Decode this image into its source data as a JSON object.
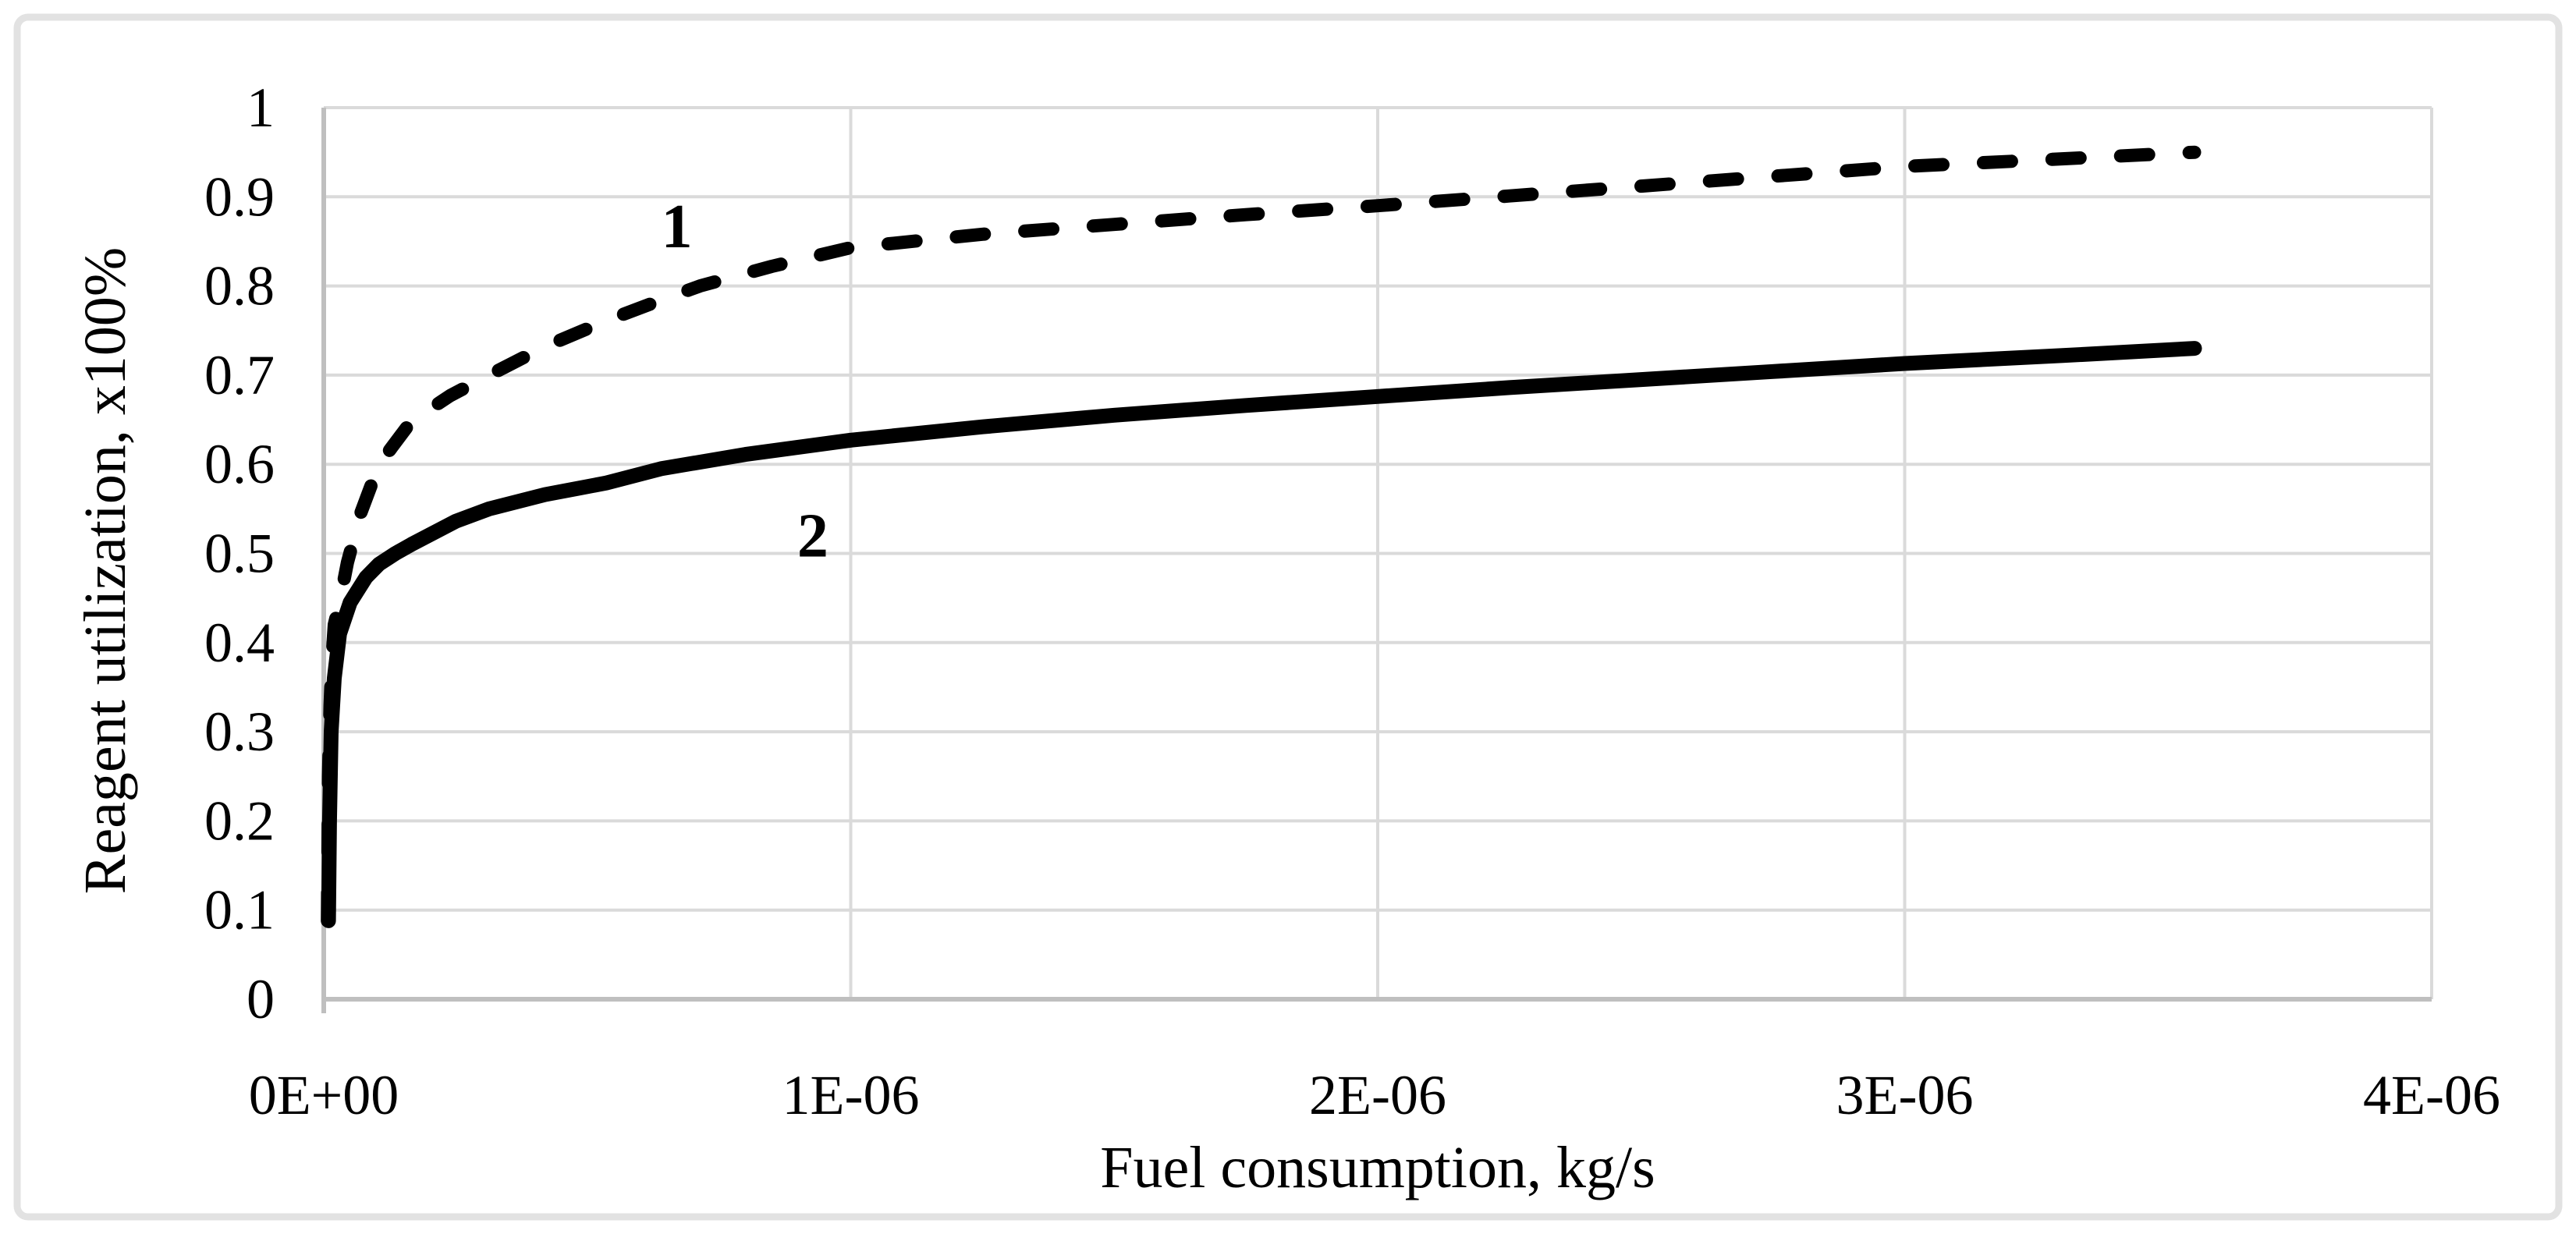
{
  "figure": {
    "background": "#ffffff",
    "border_color": "#e2e2e2",
    "gridline_color": "#dadada",
    "axis_line_color": "#bfbfbf",
    "ink_color": "#000000"
  },
  "chart_data": {
    "type": "line",
    "title": "",
    "xlabel": "Fuel consumption, kg/s",
    "ylabel": "Reagent utilization, x100%",
    "xlim": [
      0,
      4e-06
    ],
    "ylim": [
      0,
      1
    ],
    "grid": true,
    "legend_position": "none",
    "x_ticks": [
      {
        "value": 0,
        "label": "0E+00"
      },
      {
        "value": 1e-06,
        "label": "1E-06"
      },
      {
        "value": 2e-06,
        "label": "2E-06"
      },
      {
        "value": 3e-06,
        "label": "3E-06"
      },
      {
        "value": 4e-06,
        "label": "4E-06"
      }
    ],
    "y_ticks": [
      {
        "value": 0,
        "label": "0"
      },
      {
        "value": 0.1,
        "label": "0.1"
      },
      {
        "value": 0.2,
        "label": "0.2"
      },
      {
        "value": 0.3,
        "label": "0.3"
      },
      {
        "value": 0.4,
        "label": "0.4"
      },
      {
        "value": 0.5,
        "label": "0.5"
      },
      {
        "value": 0.6,
        "label": "0.6"
      },
      {
        "value": 0.7,
        "label": "0.7"
      },
      {
        "value": 0.8,
        "label": "0.8"
      },
      {
        "value": 0.9,
        "label": "0.9"
      },
      {
        "value": 1,
        "label": "1"
      }
    ],
    "series": [
      {
        "name": "1",
        "line_style": "dashed",
        "color": "#000000",
        "label_anchor": {
          "x": 6.7e-07,
          "y": 0.868
        },
        "points": [
          [
            7e-09,
            0.088
          ],
          [
            9e-09,
            0.25
          ],
          [
            1.2e-08,
            0.33
          ],
          [
            1.6e-08,
            0.385
          ],
          [
            2e-08,
            0.42
          ],
          [
            3e-08,
            0.445
          ],
          [
            4.5e-08,
            0.49
          ],
          [
            7e-08,
            0.545
          ],
          [
            1.05e-07,
            0.6
          ],
          [
            1.66e-07,
            0.648
          ],
          [
            2.4e-07,
            0.677
          ],
          [
            3.14e-07,
            0.7
          ],
          [
            4.2e-07,
            0.732
          ],
          [
            5.36e-07,
            0.761
          ],
          [
            6.3e-07,
            0.782
          ],
          [
            7.14e-07,
            0.8
          ],
          [
            8.5e-07,
            0.822
          ],
          [
            1e-06,
            0.843
          ],
          [
            1.25e-06,
            0.858
          ],
          [
            1.5e-06,
            0.869
          ],
          [
            1.75e-06,
            0.88
          ],
          [
            2e-06,
            0.89
          ],
          [
            2.25e-06,
            0.901
          ],
          [
            2.5e-06,
            0.912
          ],
          [
            2.75e-06,
            0.923
          ],
          [
            3e-06,
            0.934
          ],
          [
            3.28e-06,
            0.942
          ],
          [
            3.55e-06,
            0.95
          ]
        ]
      },
      {
        "name": "2",
        "line_style": "solid",
        "color": "#000000",
        "label_anchor": {
          "x": 9.28e-07,
          "y": 0.521
        },
        "points": [
          [
            9e-09,
            0.088
          ],
          [
            1.1e-08,
            0.2
          ],
          [
            1.4e-08,
            0.3
          ],
          [
            2e-08,
            0.36
          ],
          [
            3e-08,
            0.41
          ],
          [
            5e-08,
            0.445
          ],
          [
            8e-08,
            0.473
          ],
          [
            1.05e-07,
            0.488
          ],
          [
            1.36e-07,
            0.5
          ],
          [
            1.66e-07,
            0.51
          ],
          [
            2.5e-07,
            0.536
          ],
          [
            3.14e-07,
            0.55
          ],
          [
            4.2e-07,
            0.566
          ],
          [
            5.36e-07,
            0.579
          ],
          [
            6.4e-07,
            0.595
          ],
          [
            8e-07,
            0.611
          ],
          [
            1e-06,
            0.627
          ],
          [
            1.25e-06,
            0.642
          ],
          [
            1.5e-06,
            0.655
          ],
          [
            1.75e-06,
            0.666
          ],
          [
            2e-06,
            0.676
          ],
          [
            2.25e-06,
            0.686
          ],
          [
            2.5e-06,
            0.695
          ],
          [
            2.75e-06,
            0.704
          ],
          [
            3e-06,
            0.713
          ],
          [
            3.3e-06,
            0.722
          ],
          [
            3.55e-06,
            0.73
          ]
        ]
      }
    ]
  }
}
